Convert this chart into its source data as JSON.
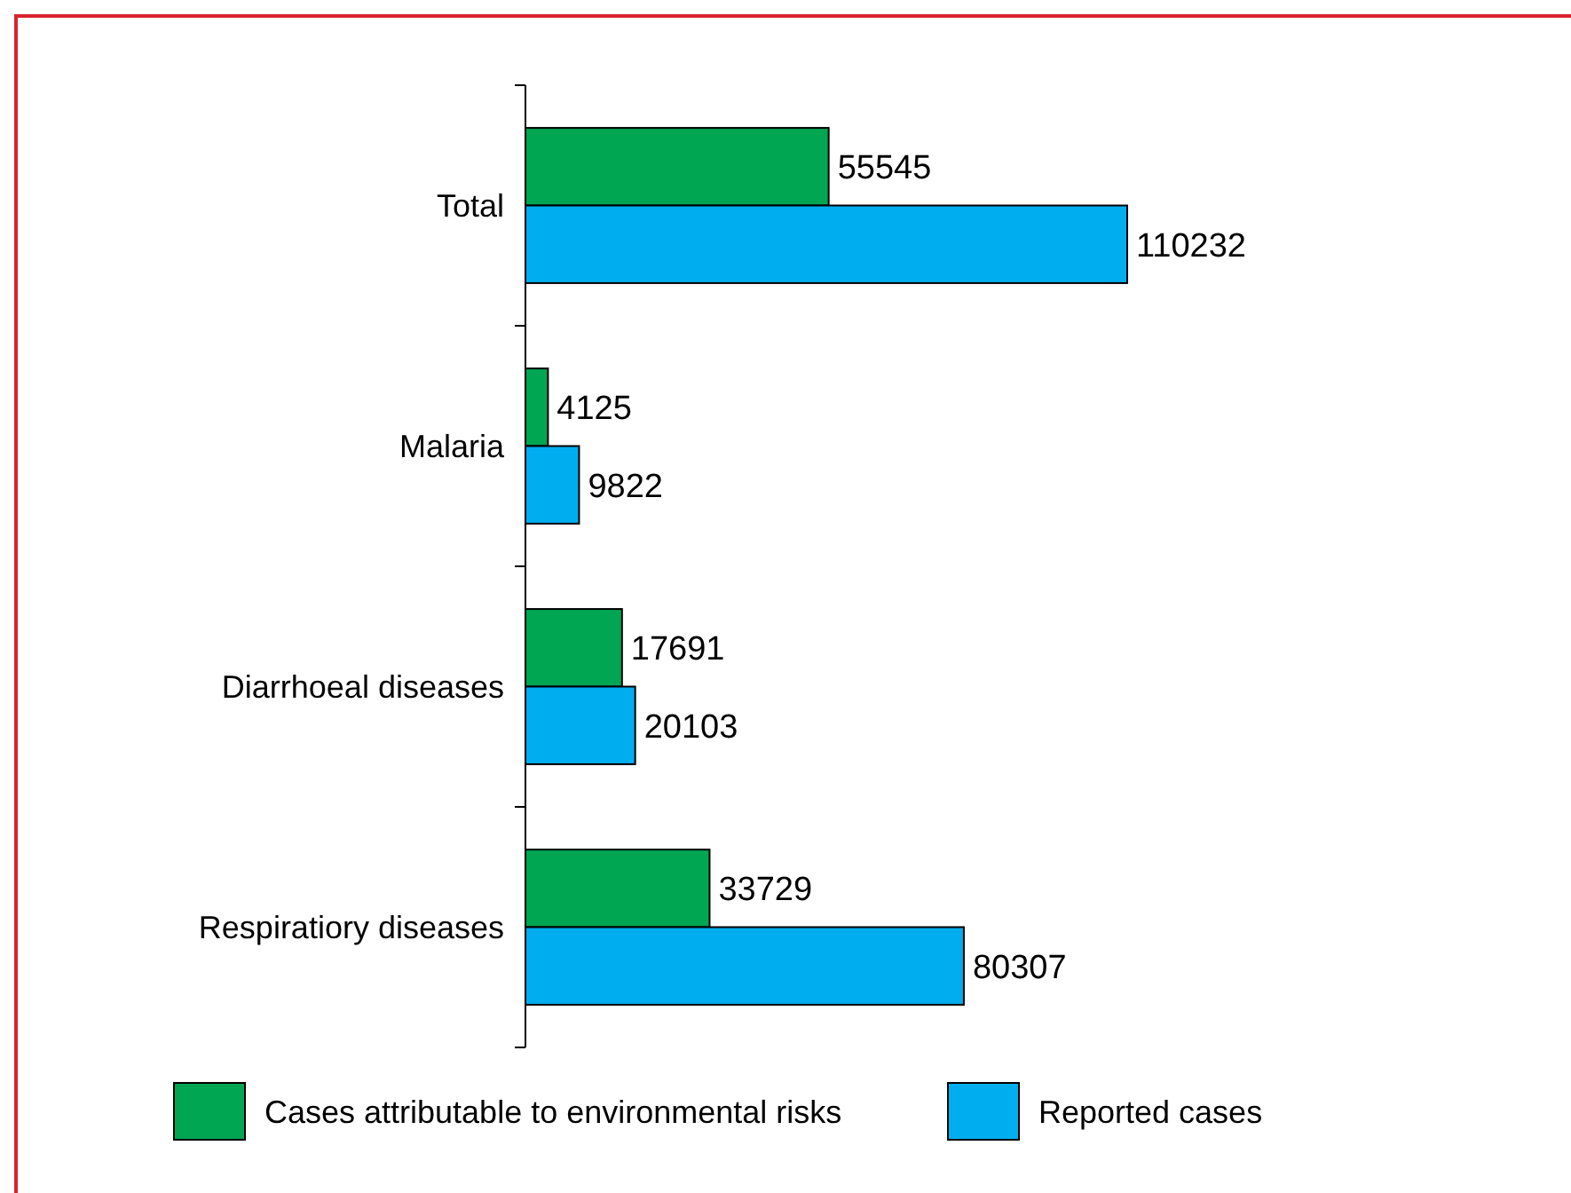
{
  "chart_data": {
    "type": "bar",
    "orientation": "horizontal",
    "categories": [
      "Total",
      "Malaria",
      "Diarrhoeal diseases",
      "Respiratiory diseases"
    ],
    "series": [
      {
        "name": "Cases attributable to environmental risks",
        "color": "#00a651",
        "values": [
          55545,
          4125,
          17691,
          33729
        ]
      },
      {
        "name": "Reported cases",
        "color": "#00aeef",
        "values": [
          110232,
          9822,
          20103,
          80307
        ]
      }
    ],
    "data_labels": true,
    "legend": "bottom"
  }
}
